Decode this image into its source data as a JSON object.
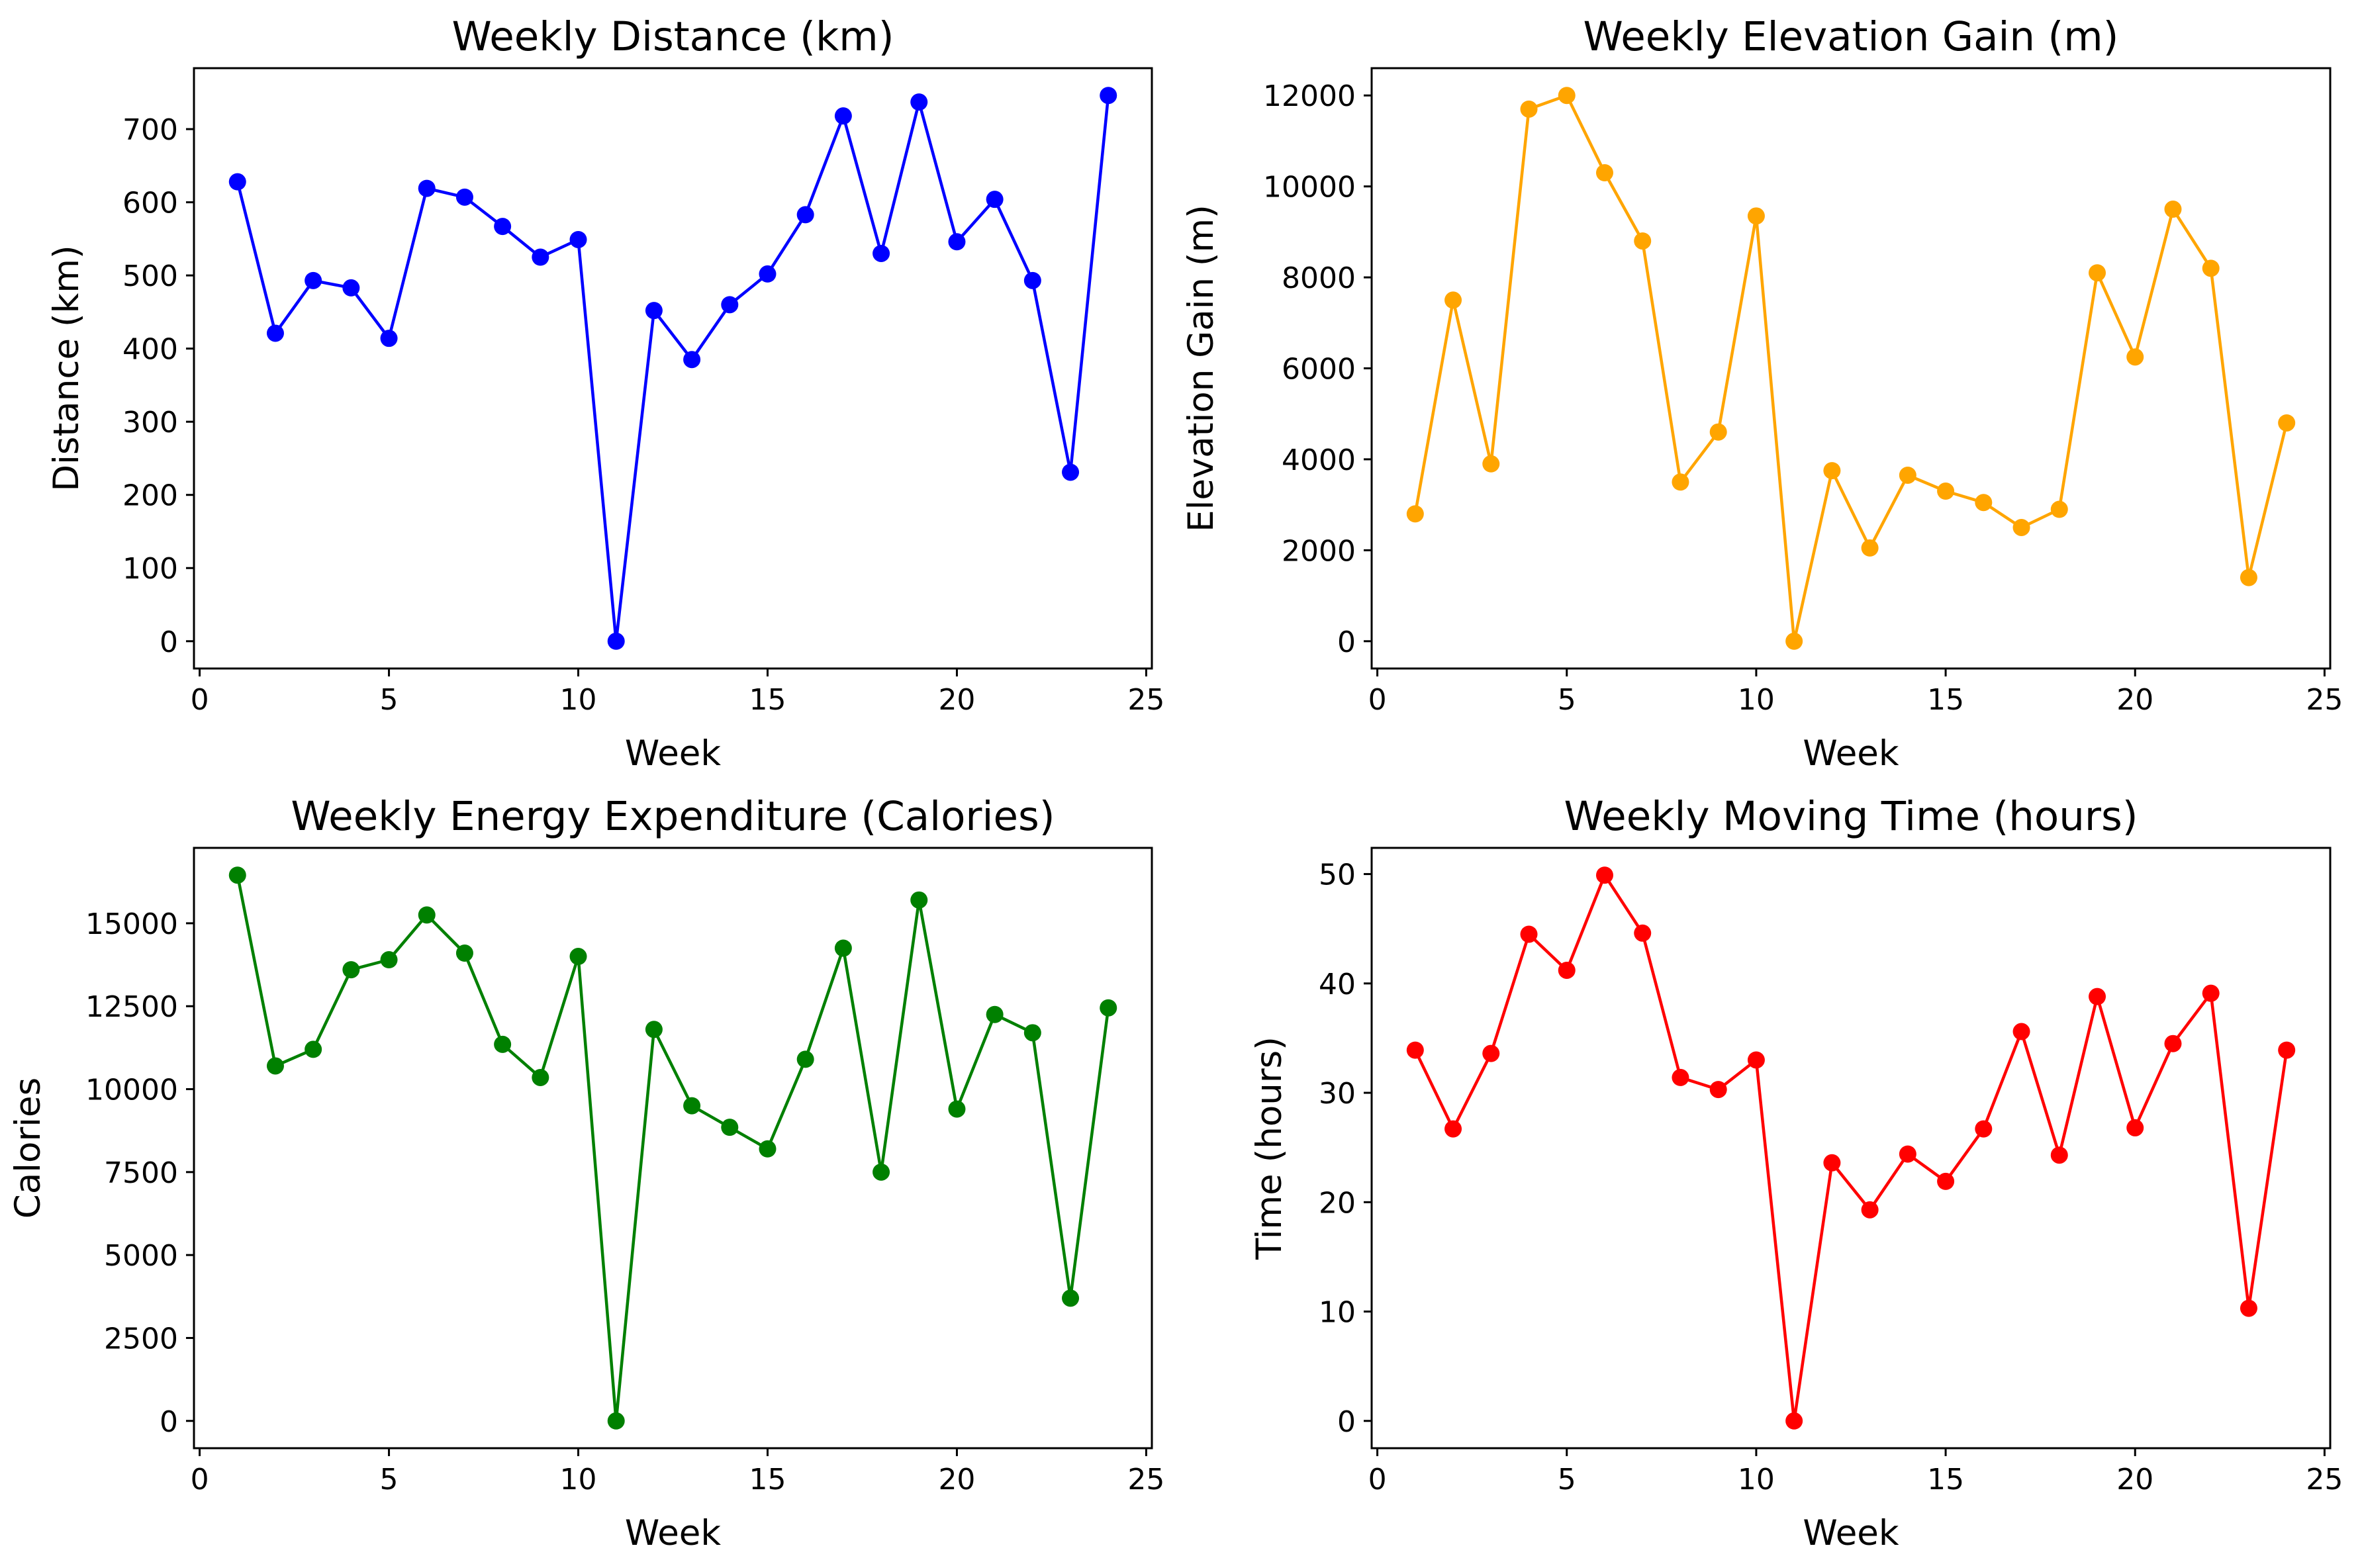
{
  "figure": {
    "background": "#ffffff"
  },
  "chart_data": [
    {
      "type": "line",
      "title": "Weekly Distance (km)",
      "xlabel": "Week",
      "ylabel": "Distance (km)",
      "color": "#0000ff",
      "marker": "circle",
      "grid": false,
      "x": [
        1,
        2,
        3,
        4,
        5,
        6,
        7,
        8,
        9,
        10,
        11,
        12,
        13,
        14,
        15,
        16,
        17,
        18,
        19,
        20,
        21,
        22,
        23,
        24
      ],
      "values": [
        628,
        421,
        493,
        483,
        414,
        619,
        607,
        567,
        525,
        549,
        0,
        452,
        385,
        460,
        502,
        583,
        718,
        530,
        737,
        546,
        604,
        493,
        231,
        746
      ],
      "xlim": [
        -0.15,
        25.15
      ],
      "ylim": [
        -37.3,
        783.3
      ],
      "xticks": [
        0,
        5,
        10,
        15,
        20,
        25
      ],
      "yticks": [
        0,
        100,
        200,
        300,
        400,
        500,
        600,
        700
      ]
    },
    {
      "type": "line",
      "title": "Weekly Elevation Gain (m)",
      "xlabel": "Week",
      "ylabel": "Elevation Gain (m)",
      "color": "#ffa500",
      "marker": "circle",
      "grid": false,
      "x": [
        1,
        2,
        3,
        4,
        5,
        6,
        7,
        8,
        9,
        10,
        11,
        12,
        13,
        14,
        15,
        16,
        17,
        18,
        19,
        20,
        21,
        22,
        23,
        24
      ],
      "values": [
        2800,
        7500,
        3900,
        11700,
        12000,
        10300,
        8800,
        3500,
        4600,
        9350,
        0,
        3750,
        2050,
        3650,
        3300,
        3050,
        2500,
        2900,
        8100,
        6250,
        9500,
        8200,
        1400,
        4800
      ],
      "xlim": [
        -0.15,
        25.15
      ],
      "ylim": [
        -600,
        12600
      ],
      "xticks": [
        0,
        5,
        10,
        15,
        20,
        25
      ],
      "yticks": [
        0,
        2000,
        4000,
        6000,
        8000,
        10000,
        12000
      ]
    },
    {
      "type": "line",
      "title": "Weekly Energy Expenditure (Calories)",
      "xlabel": "Week",
      "ylabel": "Calories",
      "color": "#008000",
      "marker": "circle",
      "grid": false,
      "x": [
        1,
        2,
        3,
        4,
        5,
        6,
        7,
        8,
        9,
        10,
        11,
        12,
        13,
        14,
        15,
        16,
        17,
        18,
        19,
        20,
        21,
        22,
        23,
        24
      ],
      "values": [
        16450,
        10700,
        11200,
        13600,
        13900,
        15250,
        14100,
        11350,
        10350,
        14000,
        0,
        11800,
        9500,
        8850,
        8200,
        10900,
        14250,
        7500,
        15700,
        9400,
        12250,
        11700,
        3700,
        12450
      ],
      "xlim": [
        -0.15,
        25.15
      ],
      "ylim": [
        -822.5,
        17272.5
      ],
      "xticks": [
        0,
        5,
        10,
        15,
        20,
        25
      ],
      "yticks": [
        0,
        2500,
        5000,
        7500,
        10000,
        12500,
        15000
      ]
    },
    {
      "type": "line",
      "title": "Weekly Moving Time (hours)",
      "xlabel": "Week",
      "ylabel": "Time (hours)",
      "color": "#ff0000",
      "marker": "circle",
      "grid": false,
      "x": [
        1,
        2,
        3,
        4,
        5,
        6,
        7,
        8,
        9,
        10,
        11,
        12,
        13,
        14,
        15,
        16,
        17,
        18,
        19,
        20,
        21,
        22,
        23,
        24
      ],
      "values": [
        33.9,
        26.7,
        33.6,
        44.5,
        41.2,
        49.9,
        44.6,
        31.4,
        30.3,
        33.0,
        0,
        23.6,
        19.3,
        24.4,
        21.9,
        26.7,
        35.6,
        24.3,
        38.8,
        26.8,
        34.5,
        39.1,
        10.3,
        33.9
      ],
      "xlim": [
        -0.15,
        25.15
      ],
      "ylim": [
        -2.495,
        52.395
      ],
      "xticks": [
        0,
        5,
        10,
        15,
        20,
        25
      ],
      "yticks": [
        0,
        10,
        20,
        30,
        40,
        50
      ]
    }
  ]
}
